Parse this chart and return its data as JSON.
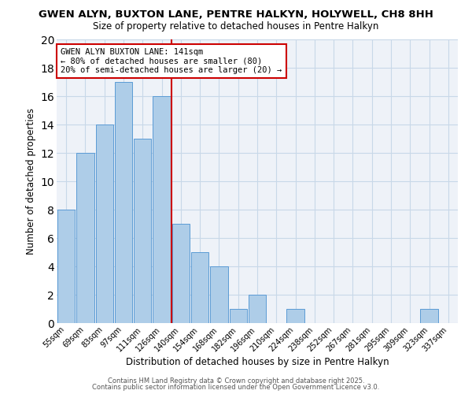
{
  "title": "GWEN ALYN, BUXTON LANE, PENTRE HALKYN, HOLYWELL, CH8 8HH",
  "subtitle": "Size of property relative to detached houses in Pentre Halkyn",
  "xlabel": "Distribution of detached houses by size in Pentre Halkyn",
  "ylabel": "Number of detached properties",
  "bin_labels": [
    "55sqm",
    "69sqm",
    "83sqm",
    "97sqm",
    "111sqm",
    "126sqm",
    "140sqm",
    "154sqm",
    "168sqm",
    "182sqm",
    "196sqm",
    "210sqm",
    "224sqm",
    "238sqm",
    "252sqm",
    "267sqm",
    "281sqm",
    "295sqm",
    "309sqm",
    "323sqm",
    "337sqm"
  ],
  "bar_heights": [
    8,
    12,
    14,
    17,
    13,
    16,
    7,
    5,
    4,
    1,
    2,
    0,
    1,
    0,
    0,
    0,
    0,
    0,
    0,
    1,
    0
  ],
  "bar_color": "#aecde8",
  "bar_edge_color": "#5b9bd5",
  "vline_color": "#cc0000",
  "annotation_title": "GWEN ALYN BUXTON LANE: 141sqm",
  "annotation_line1": "← 80% of detached houses are smaller (80)",
  "annotation_line2": "20% of semi-detached houses are larger (20) →",
  "annotation_box_color": "#ffffff",
  "annotation_box_edge": "#cc0000",
  "ylim": [
    0,
    20
  ],
  "yticks": [
    0,
    2,
    4,
    6,
    8,
    10,
    12,
    14,
    16,
    18,
    20
  ],
  "grid_color": "#c8d8e8",
  "background_color": "#eef2f8",
  "title_fontsize": 9.5,
  "subtitle_fontsize": 8.5,
  "footer1": "Contains HM Land Registry data © Crown copyright and database right 2025.",
  "footer2": "Contains public sector information licensed under the Open Government Licence v3.0."
}
